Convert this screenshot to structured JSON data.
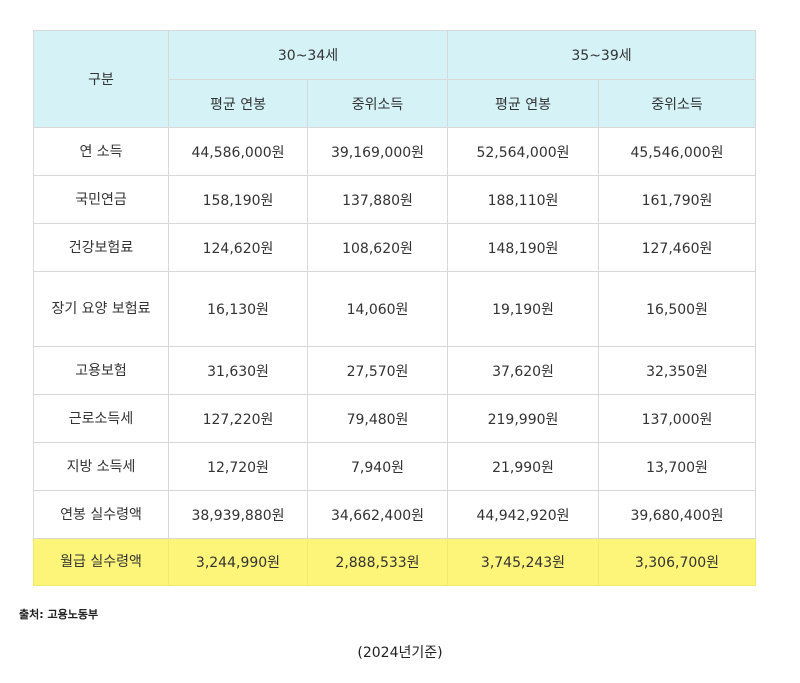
{
  "table": {
    "header": {
      "category": "구분",
      "group1": "30~34세",
      "group2": "35~39세",
      "subheaders": [
        "평균 연봉",
        "중위소득",
        "평균 연봉",
        "중위소득"
      ]
    },
    "rows": [
      {
        "label": "연 소득",
        "values": [
          "44,586,000원",
          "39,169,000원",
          "52,564,000원",
          "45,546,000원"
        ]
      },
      {
        "label": "국민연금",
        "values": [
          "158,190원",
          "137,880원",
          "188,110원",
          "161,790원"
        ]
      },
      {
        "label": "건강보험료",
        "values": [
          "124,620원",
          "108,620원",
          "148,190원",
          "127,460원"
        ]
      },
      {
        "label": "장기 요양 보험료",
        "values": [
          "16,130원",
          "14,060원",
          "19,190원",
          "16,500원"
        ]
      },
      {
        "label": "고용보험",
        "values": [
          "31,630원",
          "27,570원",
          "37,620원",
          "32,350원"
        ]
      },
      {
        "label": "근로소득세",
        "values": [
          "127,220원",
          "79,480원",
          "219,990원",
          "137,000원"
        ]
      },
      {
        "label": "지방 소득세",
        "values": [
          "12,720원",
          "7,940원",
          "21,990원",
          "13,700원"
        ]
      },
      {
        "label": "연봉 실수령액",
        "values": [
          "38,939,880원",
          "34,662,400원",
          "44,942,920원",
          "39,680,400원"
        ]
      },
      {
        "label": "월급 실수령액",
        "values": [
          "3,244,990원",
          "2,888,533원",
          "3,745,243원",
          "3,306,700원"
        ]
      }
    ]
  },
  "source": "출처: 고용노동부",
  "note": "(2024년기준)",
  "colors": {
    "header_bg": "#d5f3f7",
    "highlight": "#fdf57a"
  }
}
